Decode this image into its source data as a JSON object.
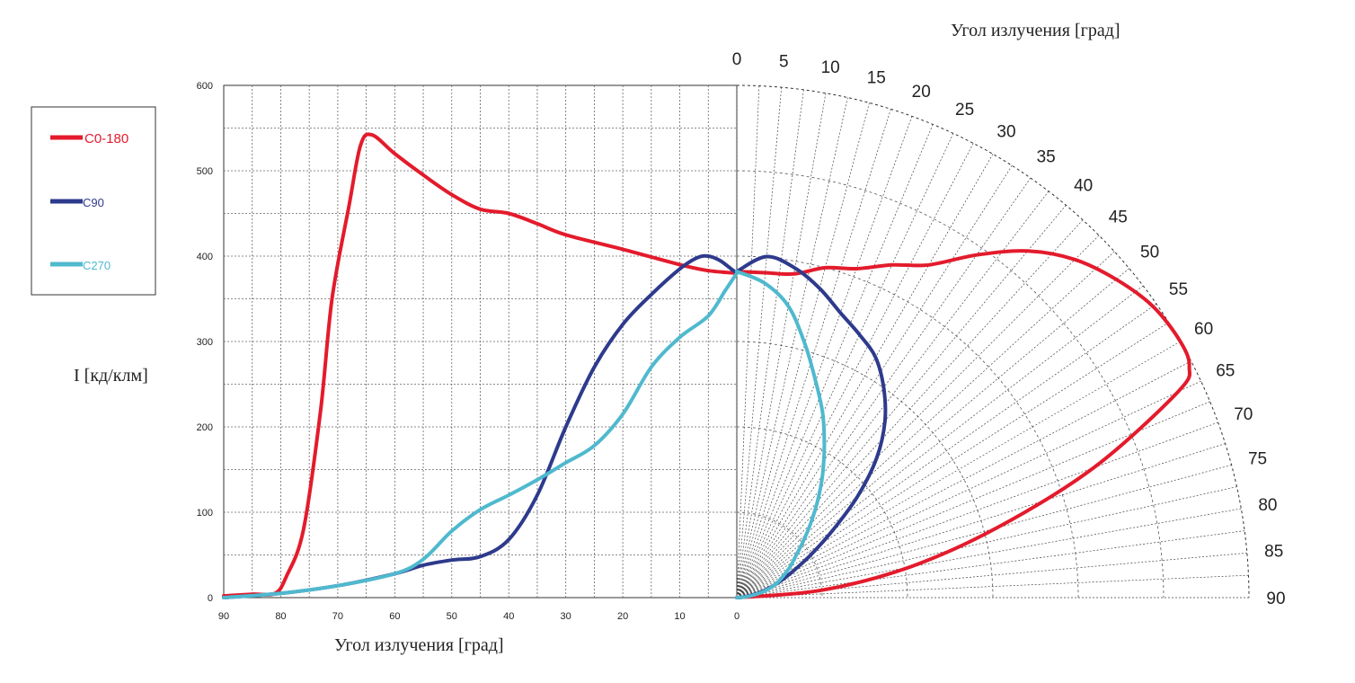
{
  "chart_data": {
    "type": "line",
    "cartesian": {
      "xlabel": "Угол излучения     [град]",
      "ylabel": "I   [кд/клм]",
      "x_ticks": [
        "90",
        "80",
        "70",
        "60",
        "50",
        "40",
        "30",
        "20",
        "10",
        "0"
      ],
      "y_ticks": [
        "0",
        "100",
        "200",
        "300",
        "400",
        "500",
        "600"
      ],
      "xlim": [
        90,
        0
      ],
      "ylim": [
        0,
        600
      ],
      "grid": true
    },
    "polar": {
      "title": "Угол излучения     [град]",
      "angle_ticks": [
        "0",
        "5",
        "10",
        "15",
        "20",
        "25",
        "30",
        "35",
        "40",
        "45",
        "50",
        "55",
        "60",
        "65",
        "70",
        "75",
        "80",
        "85",
        "90"
      ],
      "rlim": [
        0,
        600
      ],
      "grid": true
    },
    "legend": {
      "position": "left",
      "entries": [
        {
          "label": "C0-180",
          "color": "#e31b2c"
        },
        {
          "label": "C90",
          "color": "#2e3a8c"
        },
        {
          "label": "C270",
          "color": "#4fb9ce"
        }
      ]
    },
    "series": [
      {
        "name": "C0-180",
        "color": "#e31b2c",
        "points": [
          [
            90,
            2
          ],
          [
            85,
            4
          ],
          [
            81,
            5
          ],
          [
            79,
            25
          ],
          [
            76,
            80
          ],
          [
            73,
            220
          ],
          [
            71,
            350
          ],
          [
            68,
            460
          ],
          [
            66,
            530
          ],
          [
            64,
            542
          ],
          [
            60,
            520
          ],
          [
            55,
            495
          ],
          [
            50,
            472
          ],
          [
            45,
            455
          ],
          [
            40,
            450
          ],
          [
            35,
            438
          ],
          [
            30,
            425
          ],
          [
            20,
            408
          ],
          [
            10,
            390
          ],
          [
            5,
            383
          ],
          [
            0,
            380
          ]
        ]
      },
      {
        "name": "C90",
        "color": "#2e3a8c",
        "points": [
          [
            90,
            0
          ],
          [
            80,
            5
          ],
          [
            70,
            14
          ],
          [
            60,
            28
          ],
          [
            55,
            38
          ],
          [
            50,
            44
          ],
          [
            45,
            48
          ],
          [
            40,
            68
          ],
          [
            35,
            120
          ],
          [
            30,
            200
          ],
          [
            25,
            270
          ],
          [
            20,
            320
          ],
          [
            15,
            355
          ],
          [
            10,
            385
          ],
          [
            7,
            398
          ],
          [
            5,
            400
          ],
          [
            3,
            395
          ],
          [
            1,
            385
          ],
          [
            0,
            380
          ]
        ]
      },
      {
        "name": "C270",
        "color": "#4fb9ce",
        "points": [
          [
            90,
            0
          ],
          [
            80,
            5
          ],
          [
            70,
            14
          ],
          [
            60,
            28
          ],
          [
            55,
            45
          ],
          [
            50,
            78
          ],
          [
            45,
            103
          ],
          [
            40,
            120
          ],
          [
            35,
            138
          ],
          [
            30,
            158
          ],
          [
            25,
            178
          ],
          [
            20,
            215
          ],
          [
            15,
            270
          ],
          [
            10,
            305
          ],
          [
            5,
            330
          ],
          [
            2,
            360
          ],
          [
            0,
            380
          ]
        ]
      }
    ],
    "polar_series": [
      {
        "name": "C0-180",
        "color": "#e31b2c",
        "points": [
          [
            0,
            382
          ],
          [
            5,
            382
          ],
          [
            10,
            385
          ],
          [
            15,
            400
          ],
          [
            20,
            410
          ],
          [
            25,
            430
          ],
          [
            30,
            450
          ],
          [
            35,
            490
          ],
          [
            40,
            530
          ],
          [
            45,
            560
          ],
          [
            50,
            580
          ],
          [
            55,
            595
          ],
          [
            60,
            600
          ],
          [
            63,
            595
          ],
          [
            65,
            570
          ],
          [
            70,
            445
          ],
          [
            75,
            315
          ],
          [
            80,
            205
          ],
          [
            85,
            100
          ],
          [
            90,
            0
          ]
        ]
      },
      {
        "name": "C90",
        "color": "#2e3a8c",
        "points": [
          [
            0,
            382
          ],
          [
            5,
            401
          ],
          [
            10,
            392
          ],
          [
            15,
            375
          ],
          [
            20,
            355
          ],
          [
            25,
            340
          ],
          [
            30,
            325
          ],
          [
            35,
            300
          ],
          [
            40,
            270
          ],
          [
            45,
            232
          ],
          [
            50,
            185
          ],
          [
            55,
            137
          ],
          [
            60,
            100
          ],
          [
            65,
            72
          ],
          [
            70,
            52
          ],
          [
            75,
            35
          ],
          [
            80,
            20
          ],
          [
            85,
            8
          ],
          [
            90,
            0
          ]
        ]
      },
      {
        "name": "C270",
        "color": "#4fb9ce",
        "points": [
          [
            0,
            382
          ],
          [
            5,
            370
          ],
          [
            10,
            347
          ],
          [
            15,
            308
          ],
          [
            20,
            270
          ],
          [
            25,
            238
          ],
          [
            30,
            205
          ],
          [
            35,
            175
          ],
          [
            40,
            147
          ],
          [
            45,
            122
          ],
          [
            50,
            101
          ],
          [
            55,
            84
          ],
          [
            60,
            72
          ],
          [
            65,
            60
          ],
          [
            70,
            50
          ],
          [
            75,
            38
          ],
          [
            80,
            24
          ],
          [
            85,
            10
          ],
          [
            90,
            0
          ]
        ]
      }
    ]
  }
}
